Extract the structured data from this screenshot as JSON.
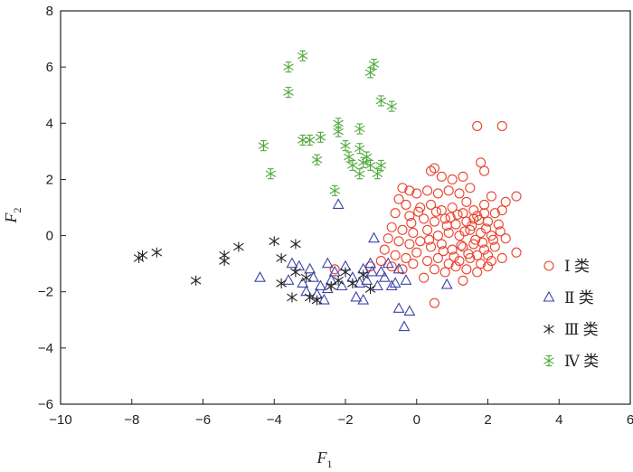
{
  "chart_data": {
    "type": "scatter",
    "title": "",
    "xlabel": "F",
    "xlabel_sub": "1",
    "ylabel": "F",
    "ylabel_sub": "2",
    "xlim": [
      -10,
      6
    ],
    "ylim": [
      -6,
      8
    ],
    "xticks": [
      -10,
      -8,
      -6,
      -4,
      -2,
      0,
      2,
      4,
      6
    ],
    "yticks": [
      -6,
      -4,
      -2,
      0,
      2,
      4,
      6,
      8
    ],
    "xtick_labels": [
      "−10",
      "−8",
      "−6",
      "−4",
      "−2",
      "0",
      "2",
      "4",
      "6"
    ],
    "ytick_labels": [
      "−6",
      "−4",
      "−2",
      "0",
      "2",
      "4",
      "6",
      "8"
    ],
    "grid": false,
    "legend_position": "right",
    "series": [
      {
        "name": "Ⅰ 类",
        "marker": "circle",
        "color": "#e8432e",
        "points": [
          [
            1.7,
            3.9
          ],
          [
            2.4,
            3.9
          ],
          [
            1.8,
            2.6
          ],
          [
            1.9,
            2.3
          ],
          [
            0.5,
            2.4
          ],
          [
            0.4,
            2.3
          ],
          [
            0.7,
            2.1
          ],
          [
            1.0,
            2.0
          ],
          [
            1.3,
            2.1
          ],
          [
            -0.4,
            1.7
          ],
          [
            -0.2,
            1.6
          ],
          [
            0.0,
            1.5
          ],
          [
            0.3,
            1.6
          ],
          [
            0.6,
            1.5
          ],
          [
            0.9,
            1.6
          ],
          [
            1.2,
            1.5
          ],
          [
            1.5,
            1.7
          ],
          [
            2.1,
            1.4
          ],
          [
            2.8,
            1.4
          ],
          [
            2.5,
            1.2
          ],
          [
            -0.5,
            1.3
          ],
          [
            -0.3,
            1.1
          ],
          [
            0.1,
            1.0
          ],
          [
            0.4,
            1.1
          ],
          [
            0.7,
            0.9
          ],
          [
            1.0,
            1.0
          ],
          [
            1.3,
            0.8
          ],
          [
            1.6,
            0.9
          ],
          [
            1.9,
            1.1
          ],
          [
            2.2,
            0.8
          ],
          [
            2.4,
            0.9
          ],
          [
            -0.6,
            0.8
          ],
          [
            -0.2,
            0.7
          ],
          [
            0.2,
            0.6
          ],
          [
            0.5,
            0.5
          ],
          [
            0.8,
            0.6
          ],
          [
            1.1,
            0.4
          ],
          [
            1.4,
            0.5
          ],
          [
            1.7,
            0.7
          ],
          [
            2.0,
            0.5
          ],
          [
            2.3,
            0.4
          ],
          [
            -0.7,
            0.3
          ],
          [
            -0.4,
            0.2
          ],
          [
            -0.1,
            0.1
          ],
          [
            0.3,
            0.2
          ],
          [
            0.6,
            0.0
          ],
          [
            0.9,
            0.1
          ],
          [
            1.2,
            0.0
          ],
          [
            1.5,
            0.2
          ],
          [
            1.8,
            0.1
          ],
          [
            2.1,
            0.0
          ],
          [
            2.5,
            -0.1
          ],
          [
            -0.8,
            -0.1
          ],
          [
            -0.5,
            -0.2
          ],
          [
            -0.2,
            -0.3
          ],
          [
            0.1,
            -0.2
          ],
          [
            0.4,
            -0.4
          ],
          [
            0.7,
            -0.3
          ],
          [
            1.0,
            -0.5
          ],
          [
            1.3,
            -0.4
          ],
          [
            1.6,
            -0.3
          ],
          [
            1.9,
            -0.5
          ],
          [
            2.2,
            -0.4
          ],
          [
            2.8,
            -0.6
          ],
          [
            -0.9,
            -0.5
          ],
          [
            -0.6,
            -0.7
          ],
          [
            -0.3,
            -0.8
          ],
          [
            0.0,
            -0.6
          ],
          [
            0.3,
            -0.9
          ],
          [
            0.6,
            -0.8
          ],
          [
            0.9,
            -1.0
          ],
          [
            1.2,
            -0.9
          ],
          [
            1.5,
            -0.8
          ],
          [
            1.8,
            -1.0
          ],
          [
            2.1,
            -0.9
          ],
          [
            2.4,
            -0.8
          ],
          [
            -0.7,
            -1.1
          ],
          [
            -0.4,
            -1.2
          ],
          [
            -0.1,
            -1.0
          ],
          [
            0.5,
            -1.2
          ],
          [
            0.8,
            -1.3
          ],
          [
            1.1,
            -1.1
          ],
          [
            1.4,
            -1.2
          ],
          [
            1.7,
            -1.3
          ],
          [
            2.0,
            -1.1
          ],
          [
            -1.3,
            -1.1
          ],
          [
            -1.0,
            -0.9
          ],
          [
            -2.3,
            -1.2
          ],
          [
            0.5,
            -2.4
          ],
          [
            1.3,
            -1.6
          ],
          [
            0.2,
            -1.5
          ],
          [
            1.55,
            0.35
          ],
          [
            1.65,
            -0.15
          ],
          [
            1.75,
            0.55
          ],
          [
            1.45,
            -0.65
          ],
          [
            1.85,
            -0.25
          ],
          [
            1.35,
            0.15
          ],
          [
            1.95,
            0.25
          ],
          [
            1.25,
            -0.35
          ],
          [
            1.6,
            0.6
          ],
          [
            1.7,
            -0.7
          ],
          [
            0.85,
            0.35
          ],
          [
            0.75,
            -0.55
          ],
          [
            1.15,
            0.75
          ],
          [
            0.55,
            0.85
          ],
          [
            0.35,
            -0.15
          ],
          [
            2.15,
            -0.15
          ],
          [
            2.35,
            0.15
          ],
          [
            -0.15,
            0.45
          ],
          [
            0.05,
            0.85
          ],
          [
            1.05,
            -0.75
          ],
          [
            0.95,
            0.65
          ],
          [
            1.4,
            1.2
          ],
          [
            1.9,
            0.8
          ],
          [
            2.0,
            -0.7
          ]
        ]
      },
      {
        "name": "Ⅱ 类",
        "marker": "triangle",
        "color": "#3d43a8",
        "points": [
          [
            -2.2,
            1.1
          ],
          [
            -1.2,
            -0.1
          ],
          [
            -4.4,
            -1.5
          ],
          [
            -3.5,
            -1.0
          ],
          [
            -3.3,
            -1.1
          ],
          [
            -3.0,
            -1.2
          ],
          [
            -2.5,
            -1.0
          ],
          [
            -2.3,
            -1.3
          ],
          [
            -2.0,
            -1.1
          ],
          [
            -1.5,
            -1.2
          ],
          [
            -1.3,
            -1.0
          ],
          [
            -1.0,
            -1.3
          ],
          [
            -0.8,
            -1.0
          ],
          [
            -0.5,
            -1.2
          ],
          [
            -3.6,
            -1.6
          ],
          [
            -3.2,
            -1.7
          ],
          [
            -2.9,
            -1.5
          ],
          [
            -2.7,
            -1.8
          ],
          [
            -2.4,
            -1.6
          ],
          [
            -2.1,
            -1.8
          ],
          [
            -1.8,
            -1.5
          ],
          [
            -1.6,
            -1.7
          ],
          [
            -1.4,
            -1.6
          ],
          [
            -1.1,
            -1.8
          ],
          [
            -0.9,
            -1.5
          ],
          [
            -0.6,
            -1.7
          ],
          [
            -0.3,
            -1.6
          ],
          [
            -3.1,
            -2.0
          ],
          [
            -2.8,
            -2.1
          ],
          [
            -2.5,
            -1.9
          ],
          [
            -1.7,
            -2.2
          ],
          [
            -1.5,
            -2.3
          ],
          [
            -0.7,
            -1.8
          ],
          [
            -0.5,
            -2.6
          ],
          [
            -0.2,
            -2.7
          ],
          [
            -0.35,
            -3.25
          ],
          [
            0.85,
            -1.75
          ],
          [
            -1.25,
            -1.3
          ],
          [
            -2.6,
            -2.3
          ]
        ]
      },
      {
        "name": "Ⅲ 类",
        "marker": "star",
        "color": "#222222",
        "points": [
          [
            -7.7,
            -0.7
          ],
          [
            -7.8,
            -0.8
          ],
          [
            -7.3,
            -0.6
          ],
          [
            -6.2,
            -1.6
          ],
          [
            -5.4,
            -0.7
          ],
          [
            -5.4,
            -0.9
          ],
          [
            -5.0,
            -0.4
          ],
          [
            -4.0,
            -0.2
          ],
          [
            -3.4,
            -0.3
          ],
          [
            -3.8,
            -1.7
          ],
          [
            -3.4,
            -1.3
          ],
          [
            -3.1,
            -1.5
          ],
          [
            -3.0,
            -2.2
          ],
          [
            -3.5,
            -2.2
          ],
          [
            -3.8,
            -0.8
          ],
          [
            -2.8,
            -2.3
          ],
          [
            -2.2,
            -1.6
          ],
          [
            -1.8,
            -1.7
          ],
          [
            -1.5,
            -1.4
          ],
          [
            -1.3,
            -1.9
          ],
          [
            -2.0,
            -1.3
          ],
          [
            -2.4,
            -1.8
          ]
        ]
      },
      {
        "name": "Ⅳ 类",
        "marker": "asterisk",
        "color": "#4ea83a",
        "points": [
          [
            -3.2,
            6.4
          ],
          [
            -3.6,
            6.0
          ],
          [
            -1.2,
            6.1
          ],
          [
            -1.3,
            5.8
          ],
          [
            -3.6,
            5.1
          ],
          [
            -1.0,
            4.8
          ],
          [
            -0.7,
            4.6
          ],
          [
            -2.2,
            4.0
          ],
          [
            -2.2,
            3.7
          ],
          [
            -1.6,
            3.8
          ],
          [
            -4.3,
            3.2
          ],
          [
            -3.2,
            3.4
          ],
          [
            -3.0,
            3.4
          ],
          [
            -2.7,
            3.5
          ],
          [
            -2.0,
            3.2
          ],
          [
            -1.6,
            3.1
          ],
          [
            -1.9,
            2.8
          ],
          [
            -1.4,
            2.8
          ],
          [
            -2.8,
            2.7
          ],
          [
            -1.3,
            2.5
          ],
          [
            -1.0,
            2.5
          ],
          [
            -1.8,
            2.5
          ],
          [
            -4.1,
            2.2
          ],
          [
            -1.6,
            2.2
          ],
          [
            -1.1,
            2.2
          ],
          [
            -2.3,
            1.6
          ],
          [
            -1.5,
            2.6
          ]
        ]
      }
    ]
  }
}
